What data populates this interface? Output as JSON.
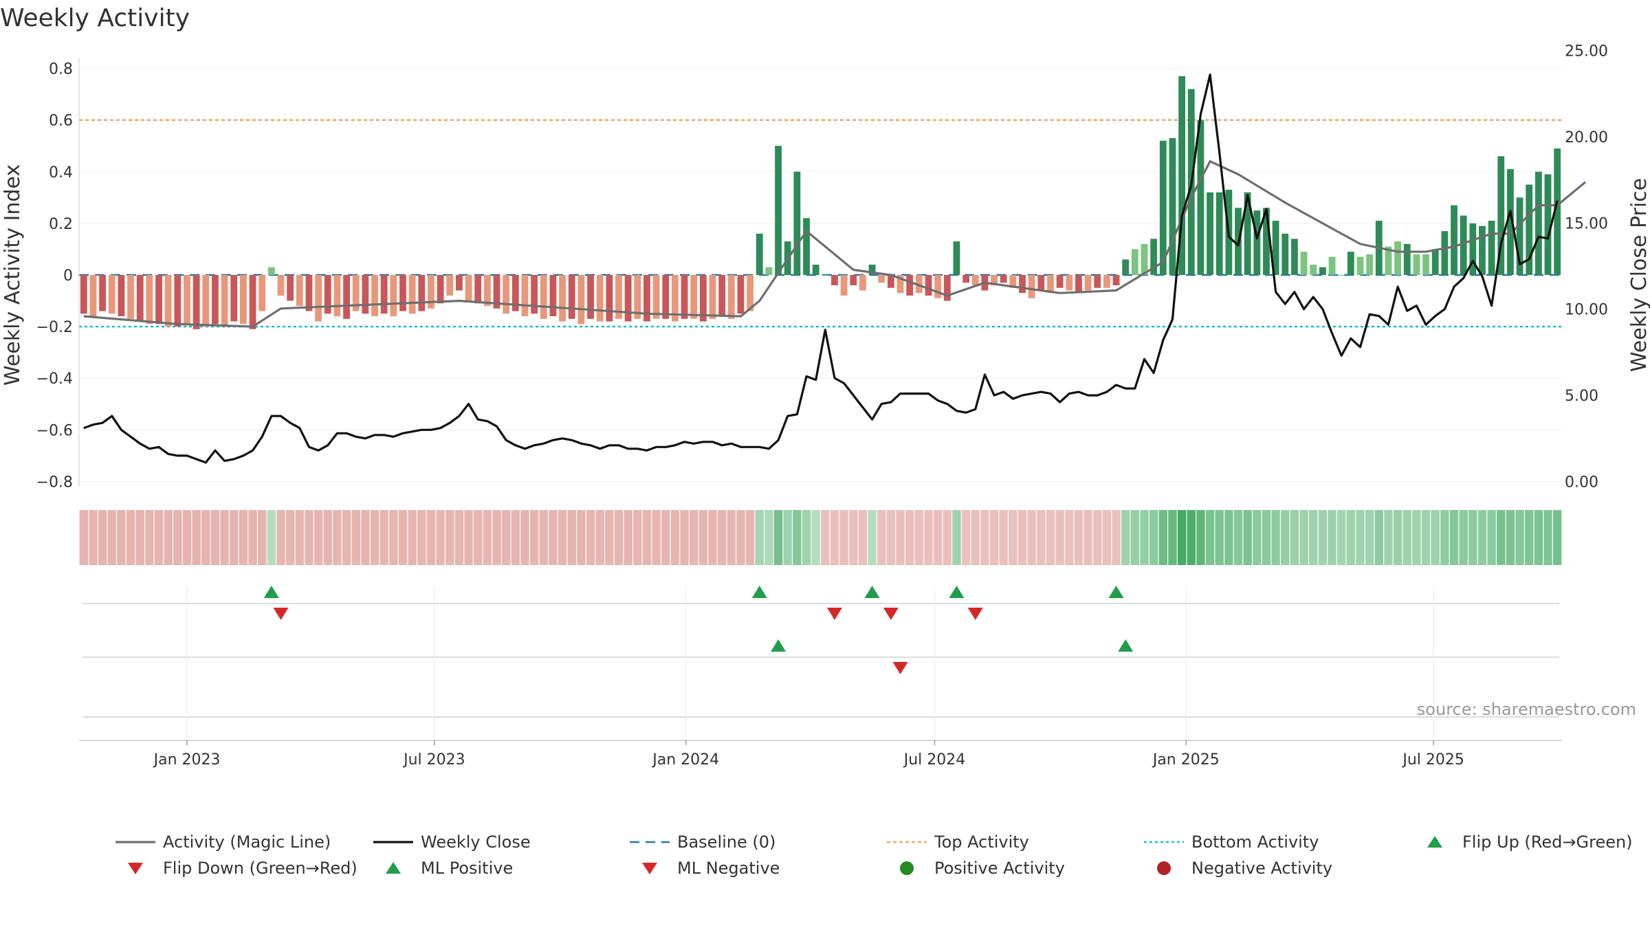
{
  "title": "Weekly Activity",
  "source": "source: sharemaestro.com",
  "chart_data": {
    "type": "bar",
    "title": "Weekly Activity",
    "ylabel_left": "Weekly Activity Index",
    "ylabel_right": "Weekly Close Price",
    "ylim_left": [
      -0.82,
      0.82
    ],
    "ylim_right": [
      0,
      25
    ],
    "yticks_left": [
      "0.8",
      "0.6",
      "0.4",
      "0.2",
      "0",
      "−0.2",
      "−0.4",
      "−0.6",
      "−0.8"
    ],
    "yticks_left_values": [
      0.8,
      0.6,
      0.4,
      0.2,
      0,
      -0.2,
      -0.4,
      -0.6,
      -0.8
    ],
    "yticks_right": [
      "25.00",
      "20.00",
      "15.00",
      "10.00",
      "5.00",
      "0.00"
    ],
    "yticks_right_values": [
      25,
      20,
      15,
      10,
      5,
      0
    ],
    "x_start": "2022-10-14",
    "x_end": "2025-10-03",
    "xticks": [
      {
        "label": "Jan 2023",
        "date": "2023-01-01"
      },
      {
        "label": "Jul 2023",
        "date": "2023-07-01"
      },
      {
        "label": "Jan 2024",
        "date": "2024-01-01"
      },
      {
        "label": "Jul 2024",
        "date": "2024-07-01"
      },
      {
        "label": "Jan 2025",
        "date": "2025-01-01"
      },
      {
        "label": "Jul 2025",
        "date": "2025-07-01"
      }
    ],
    "top_activity": 0.6,
    "bottom_activity": -0.2,
    "baseline": 0,
    "activity_values": [
      -0.15,
      -0.16,
      -0.14,
      -0.15,
      -0.16,
      -0.17,
      -0.18,
      -0.19,
      -0.19,
      -0.2,
      -0.2,
      -0.19,
      -0.21,
      -0.2,
      -0.19,
      -0.2,
      -0.18,
      -0.19,
      -0.21,
      -0.14,
      0.03,
      -0.08,
      -0.1,
      -0.12,
      -0.14,
      -0.18,
      -0.15,
      -0.16,
      -0.17,
      -0.14,
      -0.15,
      -0.16,
      -0.15,
      -0.16,
      -0.14,
      -0.15,
      -0.14,
      -0.13,
      -0.11,
      -0.08,
      -0.06,
      -0.1,
      -0.11,
      -0.12,
      -0.13,
      -0.15,
      -0.14,
      -0.16,
      -0.15,
      -0.17,
      -0.16,
      -0.18,
      -0.17,
      -0.19,
      -0.17,
      -0.18,
      -0.18,
      -0.17,
      -0.18,
      -0.17,
      -0.18,
      -0.17,
      -0.17,
      -0.18,
      -0.17,
      -0.17,
      -0.18,
      -0.17,
      -0.16,
      -0.17,
      -0.15,
      -0.14,
      0.16,
      0.03,
      0.5,
      0.13,
      0.4,
      0.22,
      0.04,
      0.0,
      -0.04,
      -0.08,
      -0.04,
      -0.06,
      0.04,
      -0.03,
      -0.05,
      -0.07,
      -0.08,
      -0.07,
      -0.08,
      -0.09,
      -0.1,
      0.13,
      -0.03,
      -0.04,
      -0.06,
      -0.04,
      -0.03,
      -0.05,
      -0.07,
      -0.09,
      -0.06,
      -0.07,
      -0.05,
      -0.06,
      -0.07,
      -0.06,
      -0.05,
      -0.05,
      -0.04,
      0.06,
      0.1,
      0.12,
      0.14,
      0.52,
      0.53,
      0.77,
      0.72,
      0.6,
      0.32,
      0.32,
      0.33,
      0.26,
      0.32,
      0.25,
      0.26,
      0.21,
      0.16,
      0.14,
      0.09,
      0.04,
      0.03,
      0.07,
      0.0,
      0.09,
      0.07,
      0.08,
      0.21,
      0.11,
      0.13,
      0.12,
      0.08,
      0.08,
      0.1,
      0.17,
      0.27,
      0.23,
      0.2,
      0.19,
      0.21,
      0.46,
      0.41,
      0.3,
      0.35,
      0.4,
      0.39,
      0.49
    ],
    "magic_line": [
      [
        0,
        -0.16
      ],
      [
        10,
        -0.19
      ],
      [
        18,
        -0.2
      ],
      [
        21,
        -0.13
      ],
      [
        40,
        -0.1
      ],
      [
        60,
        -0.15
      ],
      [
        70,
        -0.16
      ],
      [
        72,
        -0.1
      ],
      [
        77,
        0.17
      ],
      [
        82,
        0.02
      ],
      [
        86,
        0.0
      ],
      [
        92,
        -0.08
      ],
      [
        96,
        -0.03
      ],
      [
        104,
        -0.07
      ],
      [
        110,
        -0.06
      ],
      [
        115,
        0.05
      ],
      [
        118,
        0.3
      ],
      [
        120,
        0.44
      ],
      [
        123,
        0.39
      ],
      [
        128,
        0.28
      ],
      [
        132,
        0.2
      ],
      [
        136,
        0.12
      ],
      [
        140,
        0.09
      ],
      [
        143,
        0.09
      ],
      [
        146,
        0.11
      ],
      [
        150,
        0.16
      ],
      [
        152,
        0.16
      ],
      [
        155,
        0.27
      ],
      [
        157,
        0.27
      ],
      [
        160,
        0.36
      ]
    ],
    "weekly_close": [
      [
        0,
        3.1
      ],
      [
        1,
        3.3
      ],
      [
        2,
        3.4
      ],
      [
        3,
        3.8
      ],
      [
        4,
        3.0
      ],
      [
        5,
        2.6
      ],
      [
        6,
        2.2
      ],
      [
        7,
        1.9
      ],
      [
        8,
        2.0
      ],
      [
        9,
        1.6
      ],
      [
        10,
        1.5
      ],
      [
        11,
        1.5
      ],
      [
        12,
        1.3
      ],
      [
        13,
        1.1
      ],
      [
        14,
        1.8
      ],
      [
        15,
        1.2
      ],
      [
        16,
        1.3
      ],
      [
        17,
        1.5
      ],
      [
        18,
        1.8
      ],
      [
        19,
        2.6
      ],
      [
        20,
        3.8
      ],
      [
        21,
        3.8
      ],
      [
        22,
        3.4
      ],
      [
        23,
        3.1
      ],
      [
        24,
        2.0
      ],
      [
        25,
        1.8
      ],
      [
        26,
        2.1
      ],
      [
        27,
        2.8
      ],
      [
        28,
        2.8
      ],
      [
        29,
        2.6
      ],
      [
        30,
        2.5
      ],
      [
        31,
        2.7
      ],
      [
        32,
        2.7
      ],
      [
        33,
        2.6
      ],
      [
        34,
        2.8
      ],
      [
        35,
        2.9
      ],
      [
        36,
        3.0
      ],
      [
        37,
        3.0
      ],
      [
        38,
        3.1
      ],
      [
        39,
        3.4
      ],
      [
        40,
        3.8
      ],
      [
        41,
        4.5
      ],
      [
        42,
        3.6
      ],
      [
        43,
        3.5
      ],
      [
        44,
        3.2
      ],
      [
        45,
        2.4
      ],
      [
        46,
        2.1
      ],
      [
        47,
        1.9
      ],
      [
        48,
        2.1
      ],
      [
        49,
        2.2
      ],
      [
        50,
        2.4
      ],
      [
        51,
        2.5
      ],
      [
        52,
        2.4
      ],
      [
        53,
        2.2
      ],
      [
        54,
        2.1
      ],
      [
        55,
        1.9
      ],
      [
        56,
        2.1
      ],
      [
        57,
        2.1
      ],
      [
        58,
        1.9
      ],
      [
        59,
        1.9
      ],
      [
        60,
        1.8
      ],
      [
        61,
        2.0
      ],
      [
        62,
        2.0
      ],
      [
        63,
        2.1
      ],
      [
        64,
        2.3
      ],
      [
        65,
        2.2
      ],
      [
        66,
        2.3
      ],
      [
        67,
        2.3
      ],
      [
        68,
        2.1
      ],
      [
        69,
        2.2
      ],
      [
        70,
        2.0
      ],
      [
        71,
        2.0
      ],
      [
        72,
        2.0
      ],
      [
        73,
        1.9
      ],
      [
        74,
        2.4
      ],
      [
        75,
        3.8
      ],
      [
        76,
        3.9
      ],
      [
        77,
        6.1
      ],
      [
        78,
        5.9
      ],
      [
        79,
        8.8
      ],
      [
        80,
        6.0
      ],
      [
        81,
        5.7
      ],
      [
        82,
        5.0
      ],
      [
        83,
        4.3
      ],
      [
        84,
        3.6
      ],
      [
        85,
        4.5
      ],
      [
        86,
        4.6
      ],
      [
        87,
        5.1
      ],
      [
        88,
        5.1
      ],
      [
        89,
        5.1
      ],
      [
        90,
        5.1
      ],
      [
        91,
        4.7
      ],
      [
        92,
        4.5
      ],
      [
        93,
        4.1
      ],
      [
        94,
        4.0
      ],
      [
        95,
        4.2
      ],
      [
        96,
        6.2
      ],
      [
        97,
        5.0
      ],
      [
        98,
        5.2
      ],
      [
        99,
        4.8
      ],
      [
        100,
        5.0
      ],
      [
        101,
        5.1
      ],
      [
        102,
        5.2
      ],
      [
        103,
        5.1
      ],
      [
        104,
        4.6
      ],
      [
        105,
        5.1
      ],
      [
        106,
        5.2
      ],
      [
        107,
        5.0
      ],
      [
        108,
        5.0
      ],
      [
        109,
        5.2
      ],
      [
        110,
        5.6
      ],
      [
        111,
        5.4
      ],
      [
        112,
        5.4
      ],
      [
        113,
        7.1
      ],
      [
        114,
        6.3
      ],
      [
        115,
        8.2
      ],
      [
        116,
        9.4
      ],
      [
        117,
        15.4
      ],
      [
        118,
        17.2
      ],
      [
        119,
        21.3
      ],
      [
        120,
        23.6
      ],
      [
        121,
        19.1
      ],
      [
        122,
        14.2
      ],
      [
        123,
        13.7
      ],
      [
        124,
        16.6
      ],
      [
        125,
        14.1
      ],
      [
        126,
        15.8
      ],
      [
        127,
        11.0
      ],
      [
        128,
        10.3
      ],
      [
        129,
        11.0
      ],
      [
        130,
        10.0
      ],
      [
        131,
        10.7
      ],
      [
        132,
        10.0
      ],
      [
        133,
        8.6
      ],
      [
        134,
        7.3
      ],
      [
        135,
        8.3
      ],
      [
        136,
        7.8
      ],
      [
        137,
        9.7
      ],
      [
        138,
        9.6
      ],
      [
        139,
        9.1
      ],
      [
        140,
        11.3
      ],
      [
        141,
        9.9
      ],
      [
        142,
        10.2
      ],
      [
        143,
        9.1
      ],
      [
        144,
        9.6
      ],
      [
        145,
        10.0
      ],
      [
        146,
        11.3
      ],
      [
        147,
        11.8
      ],
      [
        148,
        12.8
      ],
      [
        149,
        11.9
      ],
      [
        150,
        10.2
      ],
      [
        151,
        13.8
      ],
      [
        152,
        15.7
      ],
      [
        153,
        12.6
      ],
      [
        154,
        12.9
      ],
      [
        155,
        14.2
      ],
      [
        156,
        14.1
      ],
      [
        157,
        16.3
      ]
    ],
    "strip_values": [
      -0.3,
      -0.3,
      -0.3,
      -0.3,
      -0.3,
      -0.3,
      -0.3,
      -0.3,
      -0.3,
      -0.3,
      -0.3,
      -0.3,
      -0.3,
      -0.3,
      -0.3,
      -0.3,
      -0.3,
      -0.3,
      -0.3,
      -0.3,
      0.15,
      -0.28,
      -0.28,
      -0.28,
      -0.28,
      -0.28,
      -0.28,
      -0.28,
      -0.28,
      -0.28,
      -0.28,
      -0.28,
      -0.28,
      -0.28,
      -0.28,
      -0.28,
      -0.28,
      -0.28,
      -0.28,
      -0.28,
      -0.28,
      -0.28,
      -0.28,
      -0.28,
      -0.28,
      -0.28,
      -0.28,
      -0.28,
      -0.28,
      -0.28,
      -0.28,
      -0.28,
      -0.28,
      -0.28,
      -0.28,
      -0.28,
      -0.28,
      -0.28,
      -0.28,
      -0.28,
      -0.28,
      -0.28,
      -0.28,
      -0.28,
      -0.28,
      -0.28,
      -0.28,
      -0.28,
      -0.28,
      -0.28,
      -0.28,
      -0.28,
      0.25,
      0.2,
      0.55,
      0.3,
      0.45,
      0.3,
      0.15,
      -0.2,
      -0.2,
      -0.2,
      -0.2,
      -0.2,
      0.15,
      -0.2,
      -0.2,
      -0.2,
      -0.2,
      -0.2,
      -0.2,
      -0.2,
      -0.2,
      0.3,
      -0.18,
      -0.18,
      -0.18,
      -0.18,
      -0.18,
      -0.18,
      -0.18,
      -0.18,
      -0.18,
      -0.18,
      -0.18,
      -0.18,
      -0.18,
      -0.18,
      -0.18,
      -0.18,
      -0.18,
      0.3,
      0.35,
      0.35,
      0.4,
      0.6,
      0.65,
      0.85,
      0.8,
      0.7,
      0.5,
      0.5,
      0.5,
      0.45,
      0.5,
      0.42,
      0.42,
      0.38,
      0.35,
      0.32,
      0.3,
      0.28,
      0.28,
      0.3,
      0.25,
      0.3,
      0.28,
      0.28,
      0.4,
      0.3,
      0.32,
      0.3,
      0.28,
      0.28,
      0.3,
      0.38,
      0.45,
      0.42,
      0.4,
      0.38,
      0.4,
      0.55,
      0.5,
      0.45,
      0.48,
      0.5,
      0.48,
      0.55
    ],
    "flip_up": [
      20,
      72,
      84,
      93,
      110
    ],
    "flip_down": [
      21,
      80,
      86,
      95
    ],
    "ml_positive": [
      74,
      111
    ],
    "ml_negative": [
      87
    ],
    "colors": {
      "pos_strong": "#2e8b57",
      "pos_weak": "#7cc47f",
      "neg_strong": "#c9575a",
      "neg_weak": "#e8987a",
      "magic_line": "#6e6e6e",
      "weekly_close": "#111111",
      "baseline": "#1f77b4",
      "top_activity": "#f4a460",
      "bottom_activity": "#17becf",
      "marker_up": "#1f9e4a",
      "marker_down": "#d62728",
      "dot_pos": "#228b22",
      "dot_neg": "#b22222"
    },
    "legend": {
      "position": "bottom",
      "items": [
        {
          "label": "Activity (Magic Line)",
          "kind": "line-gray"
        },
        {
          "label": "Weekly Close",
          "kind": "line-black"
        },
        {
          "label": "Baseline (0)",
          "kind": "dash-blue"
        },
        {
          "label": "Top Activity",
          "kind": "dot-orange"
        },
        {
          "label": "Bottom Activity",
          "kind": "dot-cyan"
        },
        {
          "label": "Flip Up (Red→Green)",
          "kind": "tri-up"
        },
        {
          "label": "Flip Down (Green→Red)",
          "kind": "tri-down"
        },
        {
          "label": "ML Positive",
          "kind": "tri-up"
        },
        {
          "label": "ML Negative",
          "kind": "tri-down"
        },
        {
          "label": "Positive Activity",
          "kind": "dot-green"
        },
        {
          "label": "Negative Activity",
          "kind": "dot-red"
        }
      ]
    }
  }
}
